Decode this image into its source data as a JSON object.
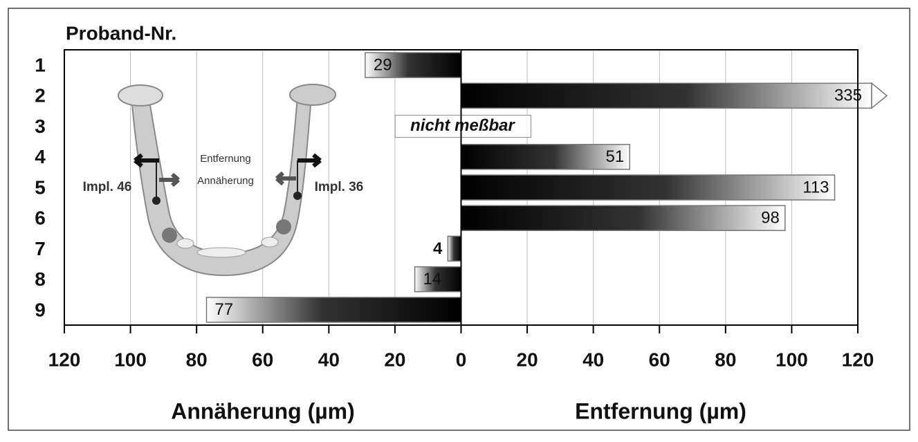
{
  "chart_data": {
    "type": "diverging-bar",
    "title": "Proband-Nr.",
    "x_label_left": "Annäherung (µm)",
    "x_label_right": "Entfernung (µm)",
    "categories": [
      "1",
      "2",
      "3",
      "4",
      "5",
      "6",
      "7",
      "8",
      "9"
    ],
    "values": [
      -29,
      335,
      null,
      51,
      113,
      98,
      -4,
      -14,
      -77
    ],
    "value_labels": [
      "29",
      "335",
      "nicht meßbar",
      "51",
      "113",
      "98",
      "4",
      "14",
      "77"
    ],
    "xlim": [
      -120,
      120
    ],
    "xticks": [
      {
        "value": -120,
        "label": "120"
      },
      {
        "value": -100,
        "label": "100"
      },
      {
        "value": -80,
        "label": "80"
      },
      {
        "value": -60,
        "label": "60"
      },
      {
        "value": -40,
        "label": "40"
      },
      {
        "value": -20,
        "label": "20"
      },
      0,
      20,
      40,
      60,
      80,
      100,
      120
    ],
    "grid": true,
    "inset_labels": [
      "Entfernung",
      "Annäherung",
      "Impl. 46",
      "Impl. 36"
    ]
  }
}
